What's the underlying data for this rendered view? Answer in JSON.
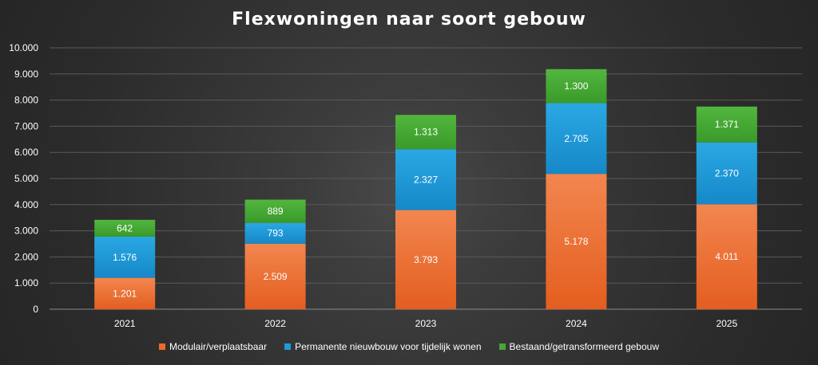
{
  "chart_data": {
    "type": "bar",
    "stacked": true,
    "title": "Flexwoningen naar soort gebouw",
    "categories": [
      "2021",
      "2022",
      "2023",
      "2024",
      "2025"
    ],
    "ylim": [
      0,
      10000
    ],
    "yticks": [
      "0",
      "1.000",
      "2.000",
      "3.000",
      "4.000",
      "5.000",
      "6.000",
      "7.000",
      "8.000",
      "9.000",
      "10.000"
    ],
    "grid": true,
    "legend_position": "bottom",
    "series": [
      {
        "name": "Modulair/verplaatsbaar",
        "color": "#ed6a2c",
        "values": [
          1201,
          2509,
          3793,
          5178,
          4011
        ],
        "labels": [
          "1.201",
          "2.509",
          "3.793",
          "5.178",
          "4.011"
        ]
      },
      {
        "name": "Permanente nieuwbouw voor tijdelijk wonen",
        "color": "#1e9ad6",
        "values": [
          1576,
          793,
          2327,
          2705,
          2370
        ],
        "labels": [
          "1.576",
          "793",
          "2.327",
          "2.705",
          "2.370"
        ]
      },
      {
        "name": "Bestaand/getransformeerd gebouw",
        "color": "#45a834",
        "values": [
          642,
          889,
          1313,
          1300,
          1371
        ],
        "labels": [
          "642",
          "889",
          "1.313",
          "1.300",
          "1.371"
        ]
      }
    ]
  }
}
